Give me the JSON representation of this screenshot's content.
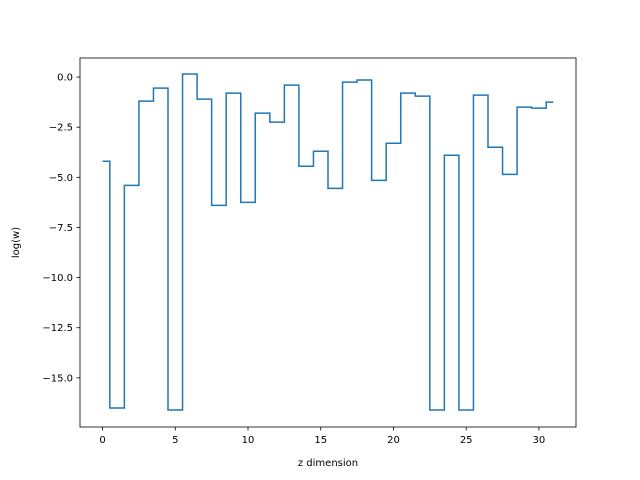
{
  "chart_data": {
    "type": "line",
    "drawstyle": "steps-mid",
    "xlabel": "z dimension",
    "ylabel": "log(w)",
    "xlim": [
      -1.55,
      32.55
    ],
    "ylim": [
      -17.45,
      0.95
    ],
    "xticks": [
      0,
      5,
      10,
      15,
      20,
      25,
      30
    ],
    "xtick_labels": [
      "0",
      "5",
      "10",
      "15",
      "20",
      "25",
      "30"
    ],
    "yticks": [
      0,
      -2.5,
      -5,
      -7.5,
      -10,
      -12.5,
      -15
    ],
    "ytick_labels": [
      "0.0",
      "−2.5",
      "−5.0",
      "−7.5",
      "−10.0",
      "−12.5",
      "−15.0"
    ],
    "grid": false,
    "line_color": "#1f77b4",
    "x": [
      0,
      1,
      2,
      3,
      4,
      5,
      6,
      7,
      8,
      9,
      10,
      11,
      12,
      13,
      14,
      15,
      16,
      17,
      18,
      19,
      20,
      21,
      22,
      23,
      24,
      25,
      26,
      27,
      28,
      29,
      30,
      31
    ],
    "values": [
      -4.2,
      -16.5,
      -5.4,
      -1.2,
      -0.55,
      -16.6,
      0.15,
      -1.1,
      -6.4,
      -0.8,
      -6.25,
      -1.8,
      -2.25,
      -0.4,
      -4.45,
      -3.7,
      -5.55,
      -0.25,
      -0.15,
      -5.15,
      -3.3,
      -0.8,
      -0.95,
      -16.6,
      -3.9,
      -16.6,
      -0.9,
      -3.5,
      -4.85,
      -1.5,
      -1.55,
      -1.25
    ]
  }
}
